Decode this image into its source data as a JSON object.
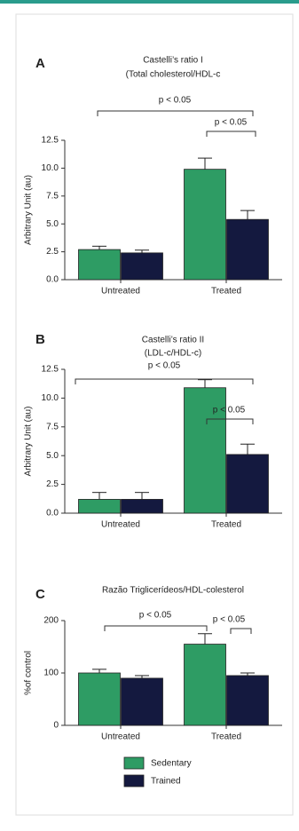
{
  "chart_data": [
    {
      "type": "bar",
      "panel": "A",
      "title": "Castelli’s ratio I",
      "subtitle": "(Total cholesterol/HDL-c",
      "ylabel": "Arbitrary Unit (au)",
      "categories": [
        "Untreated",
        "Treated"
      ],
      "series": [
        {
          "color": "#2e9c64",
          "values": [
            2.7,
            9.9
          ],
          "errors": [
            0.3,
            1.0
          ]
        },
        {
          "color": "#14193f",
          "values": [
            2.4,
            5.4
          ],
          "errors": [
            0.25,
            0.8
          ]
        }
      ],
      "ylim": [
        0,
        12.5
      ],
      "yticks": [
        {
          "value": 0,
          "label": "0.0"
        },
        2.5,
        {
          "value": 5,
          "label": "5.0"
        },
        7.5,
        {
          "value": 10,
          "label": "10.0"
        },
        12.5
      ],
      "annotations": [
        "p < 0.05",
        "p < 0.05"
      ]
    },
    {
      "type": "bar",
      "panel": "B",
      "title": "Castelli’s ratio II",
      "subtitle": "(LDL-c/HDL-c)",
      "ylabel": "Arbitrary Unit (au)",
      "categories": [
        "Untreated",
        "Treated"
      ],
      "series": [
        {
          "color": "#2e9c64",
          "values": [
            1.2,
            10.9
          ],
          "errors": [
            0.6,
            0.7
          ]
        },
        {
          "color": "#14193f",
          "values": [
            1.2,
            5.1
          ],
          "errors": [
            0.6,
            0.9
          ]
        }
      ],
      "ylim": [
        0,
        12.5
      ],
      "yticks": [
        {
          "value": 0,
          "label": "0.0"
        },
        2.5,
        {
          "value": 5,
          "label": "5.0"
        },
        7.5,
        {
          "value": 10,
          "label": "10.0"
        },
        12.5
      ],
      "annotations": [
        "p < 0.05",
        "p < 0.05"
      ]
    },
    {
      "type": "bar",
      "panel": "C",
      "title": "Razão Triglicerídeos/HDL-colesterol",
      "ylabel": "%of control",
      "categories": [
        "Untreated",
        "Treated"
      ],
      "series": [
        {
          "name": "Sedentary",
          "color": "#2e9c64",
          "values": [
            100,
            155
          ],
          "errors": [
            7,
            20
          ]
        },
        {
          "name": "Trained",
          "color": "#14193f",
          "values": [
            90,
            95
          ],
          "errors": [
            5,
            5
          ]
        }
      ],
      "ylim": [
        0,
        200
      ],
      "yticks": [
        0,
        100,
        200
      ],
      "annotations": [
        "p < 0.05",
        "p < 0.05"
      ]
    }
  ]
}
